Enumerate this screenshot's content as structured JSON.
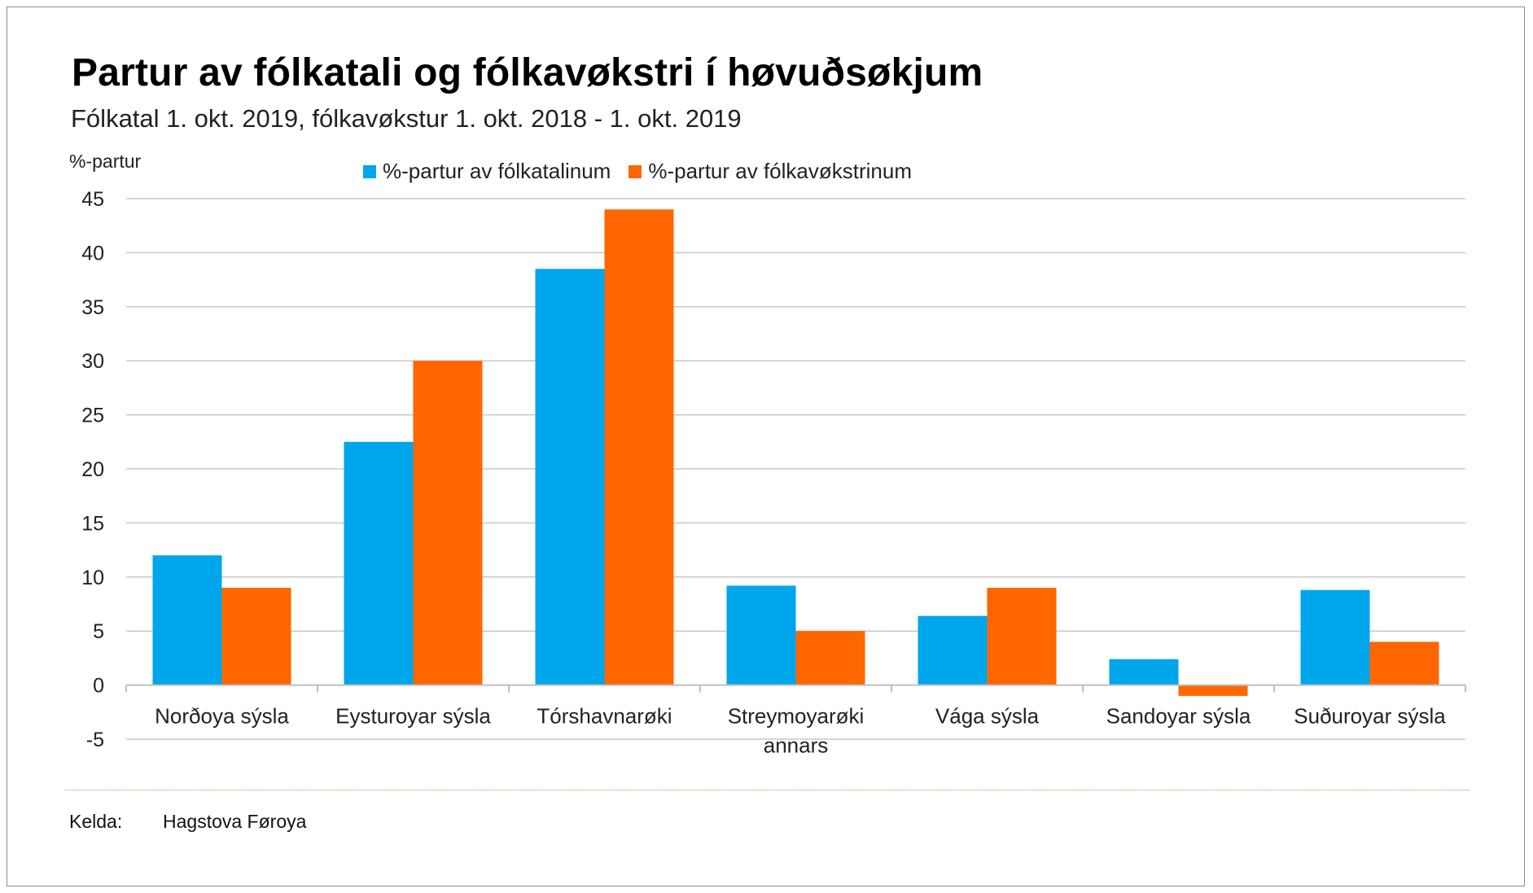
{
  "title": "Partur av fólkatali og fólkavøkstri í høvuðsøkjum",
  "subtitle": "Fólkatal 1. okt. 2019, fólkavøkstur 1. okt. 2018 - 1. okt. 2019",
  "source": {
    "label": "Kelda:",
    "value": "Hagstova Føroya"
  },
  "chart_data": {
    "type": "bar",
    "ylabel": "%-partur",
    "xlabel": "",
    "ylim": [
      -5,
      45
    ],
    "yticks": [
      -5,
      0,
      5,
      10,
      15,
      20,
      25,
      30,
      35,
      40,
      45
    ],
    "grid": true,
    "legend_position": "top",
    "categories": [
      [
        "Norðoya sýsla"
      ],
      [
        "Eysturoyar sýsla"
      ],
      [
        "Tórshavnarøki"
      ],
      [
        "Streymoyarøki",
        "annars"
      ],
      [
        "Vága sýsla"
      ],
      [
        "Sandoyar sýsla"
      ],
      [
        "Suðuroyar sýsla"
      ]
    ],
    "series": [
      {
        "name": "%-partur av fólkatalinum",
        "color": "#00a6ec",
        "values": [
          12.0,
          22.5,
          38.5,
          9.2,
          6.4,
          2.4,
          8.8
        ]
      },
      {
        "name": "%-partur av fólkavøkstrinum",
        "color": "#ff6600",
        "values": [
          9.0,
          30.0,
          44.0,
          5.0,
          9.0,
          -1.0,
          4.0
        ]
      }
    ]
  }
}
